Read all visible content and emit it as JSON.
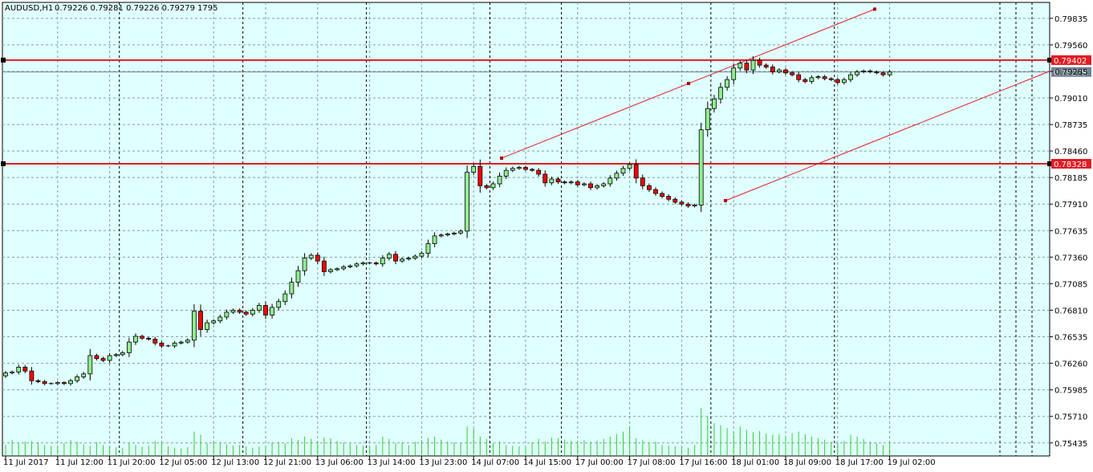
{
  "header": {
    "symbol": "AUDUSD,H1",
    "ohlc": "0.79226 0.79281 0.79226 0.79279",
    "volume": "1795"
  },
  "colors": {
    "background": "#e0ffff",
    "grid": "#7fa0a0",
    "bull_body": "#90ee90",
    "bear_body": "#ff0000",
    "candle_outline": "#000000",
    "volume": "#32cd32",
    "level_line": "#e31b23",
    "channel_line": "#e31b23",
    "bid_line": "#708090"
  },
  "chart_data": {
    "type": "candlestick",
    "title": "",
    "xlabel": "",
    "ylabel": "",
    "ylim": [
      0.753,
      0.8
    ],
    "grid": true,
    "y_ticks": [
      "0.79835",
      "0.79560",
      "0.79285",
      "0.79010",
      "0.78735",
      "0.78460",
      "0.78185",
      "0.77910",
      "0.77635",
      "0.77360",
      "0.77085",
      "0.76810",
      "0.76535",
      "0.76260",
      "0.75985",
      "0.75710",
      "0.75435"
    ],
    "x_tick_labels": [
      "11 Jul 2017",
      "11 Jul 12:00",
      "11 Jul 20:00",
      "12 Jul 05:00",
      "12 Jul 13:00",
      "12 Jul 21:00",
      "13 Jul 06:00",
      "13 Jul 14:00",
      "13 Jul 23:00",
      "14 Jul 07:00",
      "14 Jul 15:00",
      "17 Jul 00:00",
      "17 Jul 08:00",
      "17 Jul 16:00",
      "18 Jul 01:00",
      "18 Jul 09:00",
      "18 Jul 17:00",
      "19 Jul 02:00"
    ],
    "close_seq": [
      0.7616,
      0.7617,
      0.7622,
      0.7618,
      0.7608,
      0.7607,
      0.7605,
      0.7605,
      0.7606,
      0.7605,
      0.7608,
      0.7612,
      0.7615,
      0.7634,
      0.7631,
      0.7629,
      0.7634,
      0.7635,
      0.7637,
      0.7648,
      0.7654,
      0.7652,
      0.7651,
      0.7647,
      0.7644,
      0.7644,
      0.7647,
      0.7648,
      0.765,
      0.768,
      0.7661,
      0.7668,
      0.767,
      0.7674,
      0.7679,
      0.7681,
      0.7679,
      0.7677,
      0.7681,
      0.7686,
      0.7676,
      0.7684,
      0.769,
      0.7698,
      0.771,
      0.7722,
      0.7735,
      0.7738,
      0.7732,
      0.7721,
      0.7723,
      0.7724,
      0.7726,
      0.7727,
      0.7729,
      0.773,
      0.773,
      0.7729,
      0.7735,
      0.7739,
      0.7732,
      0.7734,
      0.7735,
      0.7737,
      0.774,
      0.775,
      0.7758,
      0.7759,
      0.776,
      0.7761,
      0.7763,
      0.7824,
      0.783,
      0.781,
      0.7808,
      0.7812,
      0.782,
      0.7826,
      0.7828,
      0.7829,
      0.7827,
      0.7826,
      0.7822,
      0.7813,
      0.7817,
      0.7814,
      0.7813,
      0.7814,
      0.7811,
      0.7812,
      0.7808,
      0.781,
      0.7812,
      0.7818,
      0.7823,
      0.7828,
      0.7832,
      0.7818,
      0.781,
      0.7806,
      0.7802,
      0.7799,
      0.7796,
      0.7793,
      0.7791,
      0.7789,
      0.779,
      0.7868,
      0.789,
      0.79,
      0.7912,
      0.792,
      0.7932,
      0.7937,
      0.793,
      0.794,
      0.7935,
      0.7933,
      0.7928,
      0.793,
      0.7927,
      0.7925,
      0.792,
      0.7918,
      0.7922,
      0.7923,
      0.7921,
      0.792,
      0.7917,
      0.792,
      0.7925,
      0.7928,
      0.7929,
      0.7928,
      0.7927,
      0.7925,
      0.7928
    ],
    "volumes": [
      0.3,
      0.45,
      0.35,
      0.4,
      0.42,
      0.38,
      0.3,
      0.28,
      0.25,
      0.35,
      0.45,
      0.4,
      0.32,
      0.28,
      0.38,
      0.3,
      0.26,
      0.24,
      0.22,
      0.36,
      0.3,
      0.25,
      0.28,
      0.42,
      0.38,
      0.26,
      0.22,
      0.2,
      0.24,
      0.7,
      0.6,
      0.35,
      0.4,
      0.38,
      0.32,
      0.28,
      0.3,
      0.26,
      0.22,
      0.25,
      0.28,
      0.38,
      0.4,
      0.35,
      0.5,
      0.45,
      0.55,
      0.48,
      0.4,
      0.52,
      0.5,
      0.42,
      0.38,
      0.35,
      0.3,
      0.28,
      0.26,
      0.3,
      0.55,
      0.48,
      0.35,
      0.38,
      0.3,
      0.4,
      0.45,
      0.5,
      0.55,
      0.46,
      0.4,
      0.38,
      0.36,
      0.85,
      0.78,
      0.55,
      0.48,
      0.35,
      0.4,
      0.3,
      0.28,
      0.26,
      0.24,
      0.38,
      0.48,
      0.4,
      0.52,
      0.5,
      0.46,
      0.42,
      0.4,
      0.44,
      0.4,
      0.42,
      0.48,
      0.55,
      0.62,
      0.7,
      0.85,
      0.5,
      0.44,
      0.38,
      0.4,
      0.3,
      0.28,
      0.26,
      0.24,
      0.22,
      0.3,
      1.4,
      1.15,
      0.95,
      0.88,
      0.8,
      0.7,
      0.85,
      0.75,
      0.68,
      0.72,
      0.64,
      0.6,
      0.62,
      0.58,
      0.65,
      0.7,
      0.62,
      0.55,
      0.5,
      0.46,
      0.4,
      0.35,
      0.42,
      0.6,
      0.55,
      0.48,
      0.4,
      0.35,
      0.3,
      0.38
    ],
    "levels": [
      {
        "price": 0.79402,
        "label": "0.79402"
      },
      {
        "price": 0.78328,
        "label": "0.78328"
      }
    ],
    "bid": {
      "price": 0.79279,
      "label": "0.79279"
    }
  }
}
